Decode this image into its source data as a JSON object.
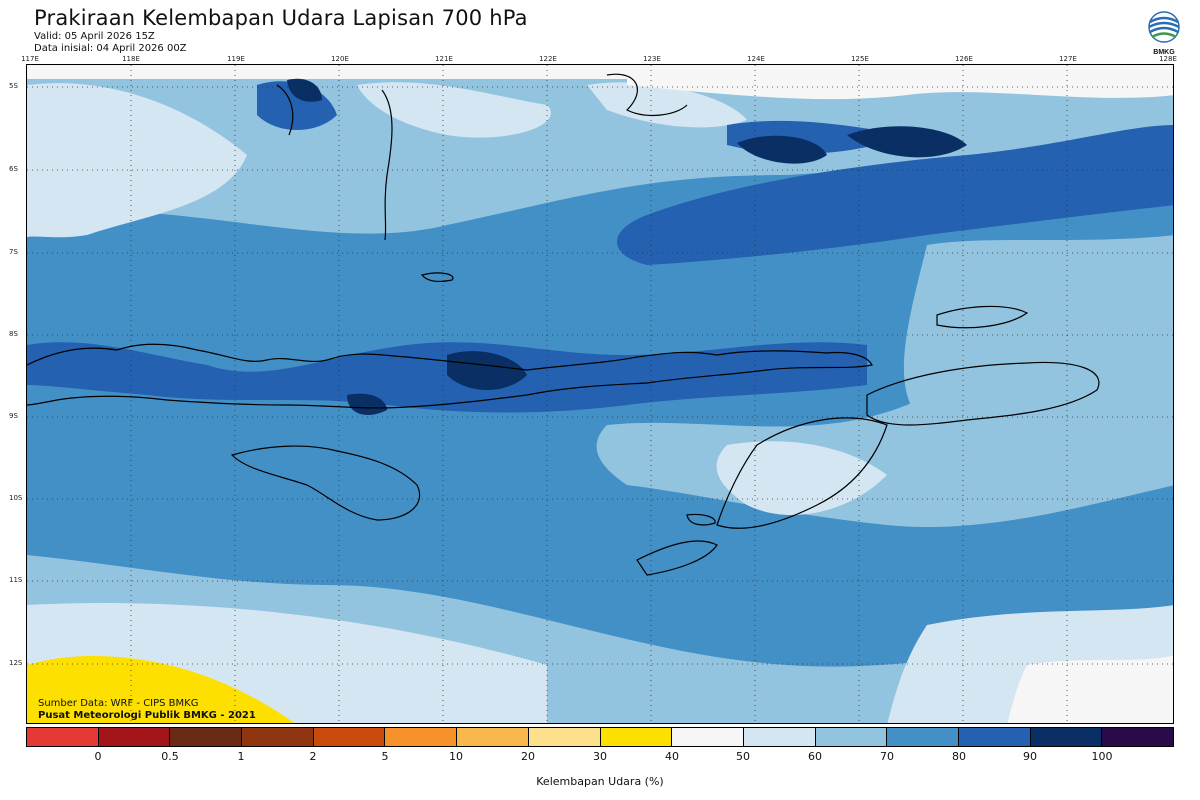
{
  "header": {
    "title": "Prakiraan Kelembapan Udara Lapisan 700 hPa",
    "valid": "Valid: 05 April 2026 15Z",
    "init": "Data inisial: 04 April 2026 00Z"
  },
  "logo": {
    "icon": "bmkg-logo-icon",
    "text": "BMKG"
  },
  "map": {
    "lon_labels": [
      "117E",
      "118E",
      "119E",
      "120E",
      "121E",
      "122E",
      "123E",
      "124E",
      "125E",
      "126E",
      "127E",
      "128E"
    ],
    "lat_labels": [
      "5S",
      "6S",
      "7S",
      "8S",
      "9S",
      "10S",
      "11S",
      "12S"
    ]
  },
  "credits": {
    "source": "Sumber Data: WRF - CIPS BMKG",
    "agency": "Pusat Meteorologi Publik BMKG - 2021"
  },
  "legend": {
    "title": "Kelembapan Udara (%)",
    "colors": [
      "#e53935",
      "#a31519",
      "#6b2a14",
      "#8f3510",
      "#c84a0c",
      "#f7922a",
      "#f9b84e",
      "#fde08c",
      "#fde000",
      "#f6f6f6",
      "#d4e6f2",
      "#93c4df",
      "#4390c6",
      "#2461b0",
      "#0a2f64",
      "#2a0b4a"
    ],
    "ticks": [
      "0",
      "0.5",
      "1",
      "2",
      "5",
      "10",
      "20",
      "30",
      "40",
      "50",
      "60",
      "70",
      "80",
      "90",
      "100"
    ]
  }
}
